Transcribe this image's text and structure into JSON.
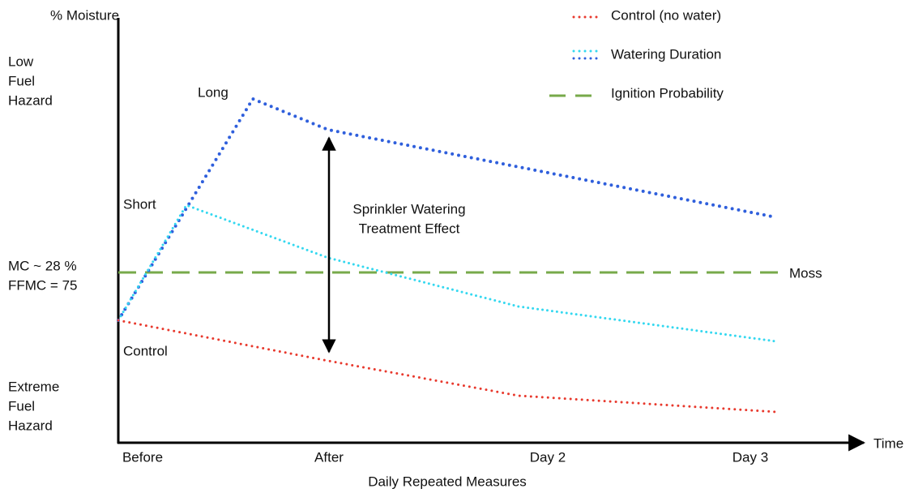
{
  "y_axis": {
    "label": "% Moisture",
    "top_label": [
      "Low",
      "Fuel",
      "Hazard"
    ],
    "threshold_label": [
      "MC ~ 28 %",
      "FFMC = 75"
    ],
    "bottom_label": [
      "Extreme",
      "Fuel",
      "Hazard"
    ]
  },
  "x_axis": {
    "label": "Time",
    "title": "Daily Repeated Measures",
    "ticks": [
      "Before",
      "After",
      "Day 2",
      "Day 3"
    ]
  },
  "annotations": {
    "long": "Long",
    "short": "Short",
    "control": "Control",
    "effect": [
      "Sprinkler Watering",
      "Treatment Effect"
    ],
    "moss": "Moss"
  },
  "legend": [
    "Control (no water)",
    "Watering Duration",
    "Ignition Probability"
  ]
}
